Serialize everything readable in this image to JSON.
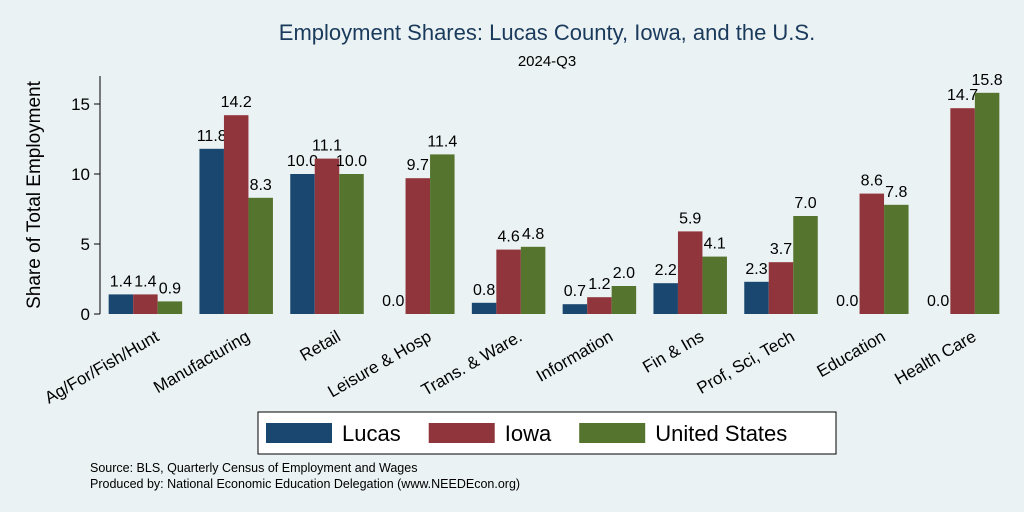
{
  "chart_data": {
    "type": "bar",
    "title": "Employment Shares: Lucas County, Iowa, and the U.S.",
    "subtitle": "2024-Q3",
    "ylabel": "Share of Total Employment",
    "xlabel": "",
    "ylim": [
      0,
      17
    ],
    "yticks": [
      0,
      5,
      10,
      15
    ],
    "categories": [
      "Ag/For/Fish/Hunt",
      "Manufacturing",
      "Retail",
      "Leisure & Hosp",
      "Trans. & Ware.",
      "Information",
      "Fin & Ins",
      "Prof, Sci, Tech",
      "Education",
      "Health Care"
    ],
    "series": [
      {
        "name": "Lucas",
        "color": "#1a476f",
        "values": [
          1.4,
          11.8,
          10.0,
          0.0,
          0.8,
          0.7,
          2.2,
          2.3,
          0.0,
          0.0
        ]
      },
      {
        "name": "Iowa",
        "color": "#90353b",
        "values": [
          1.4,
          14.2,
          11.1,
          9.7,
          4.6,
          1.2,
          5.9,
          3.7,
          8.6,
          14.7
        ]
      },
      {
        "name": "United States",
        "color": "#55752f",
        "values": [
          0.9,
          8.3,
          10.0,
          11.4,
          4.8,
          2.0,
          4.1,
          7.0,
          7.8,
          15.8
        ]
      }
    ],
    "legend_position": "bottom",
    "notes": [
      "Source: BLS, Quarterly Census of Employment and Wages",
      "Produced by: National Economic Education Delegation (www.NEEDEcon.org)"
    ]
  }
}
